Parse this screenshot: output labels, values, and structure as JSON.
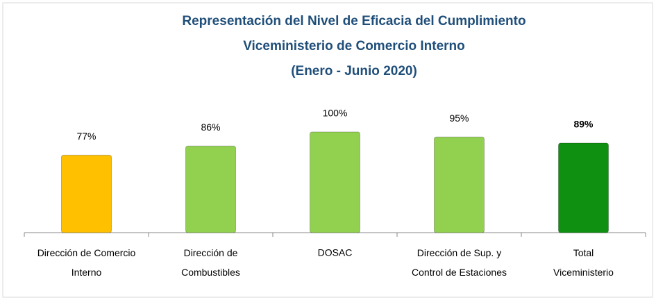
{
  "chart_data": {
    "type": "bar",
    "title": [
      "Representación del Nivel de Eficacia del Cumplimiento",
      "Viceministerio de Comercio Interno",
      "(Enero - Junio 2020)"
    ],
    "categories": [
      "Dirección de Comercio\nInterno",
      "Dirección de\nCombustibles",
      "DOSAC",
      "Dirección de Sup. y\nControl de Estaciones",
      "Total\nViceministerio"
    ],
    "values": [
      77,
      86,
      100,
      95,
      89
    ],
    "value_labels": [
      "77%",
      "86%",
      "100%",
      "95%",
      "89%"
    ],
    "colors": [
      "#ffc000",
      "#92d050",
      "#92d050",
      "#92d050",
      "#109010"
    ],
    "ylim": [
      0,
      100
    ]
  }
}
